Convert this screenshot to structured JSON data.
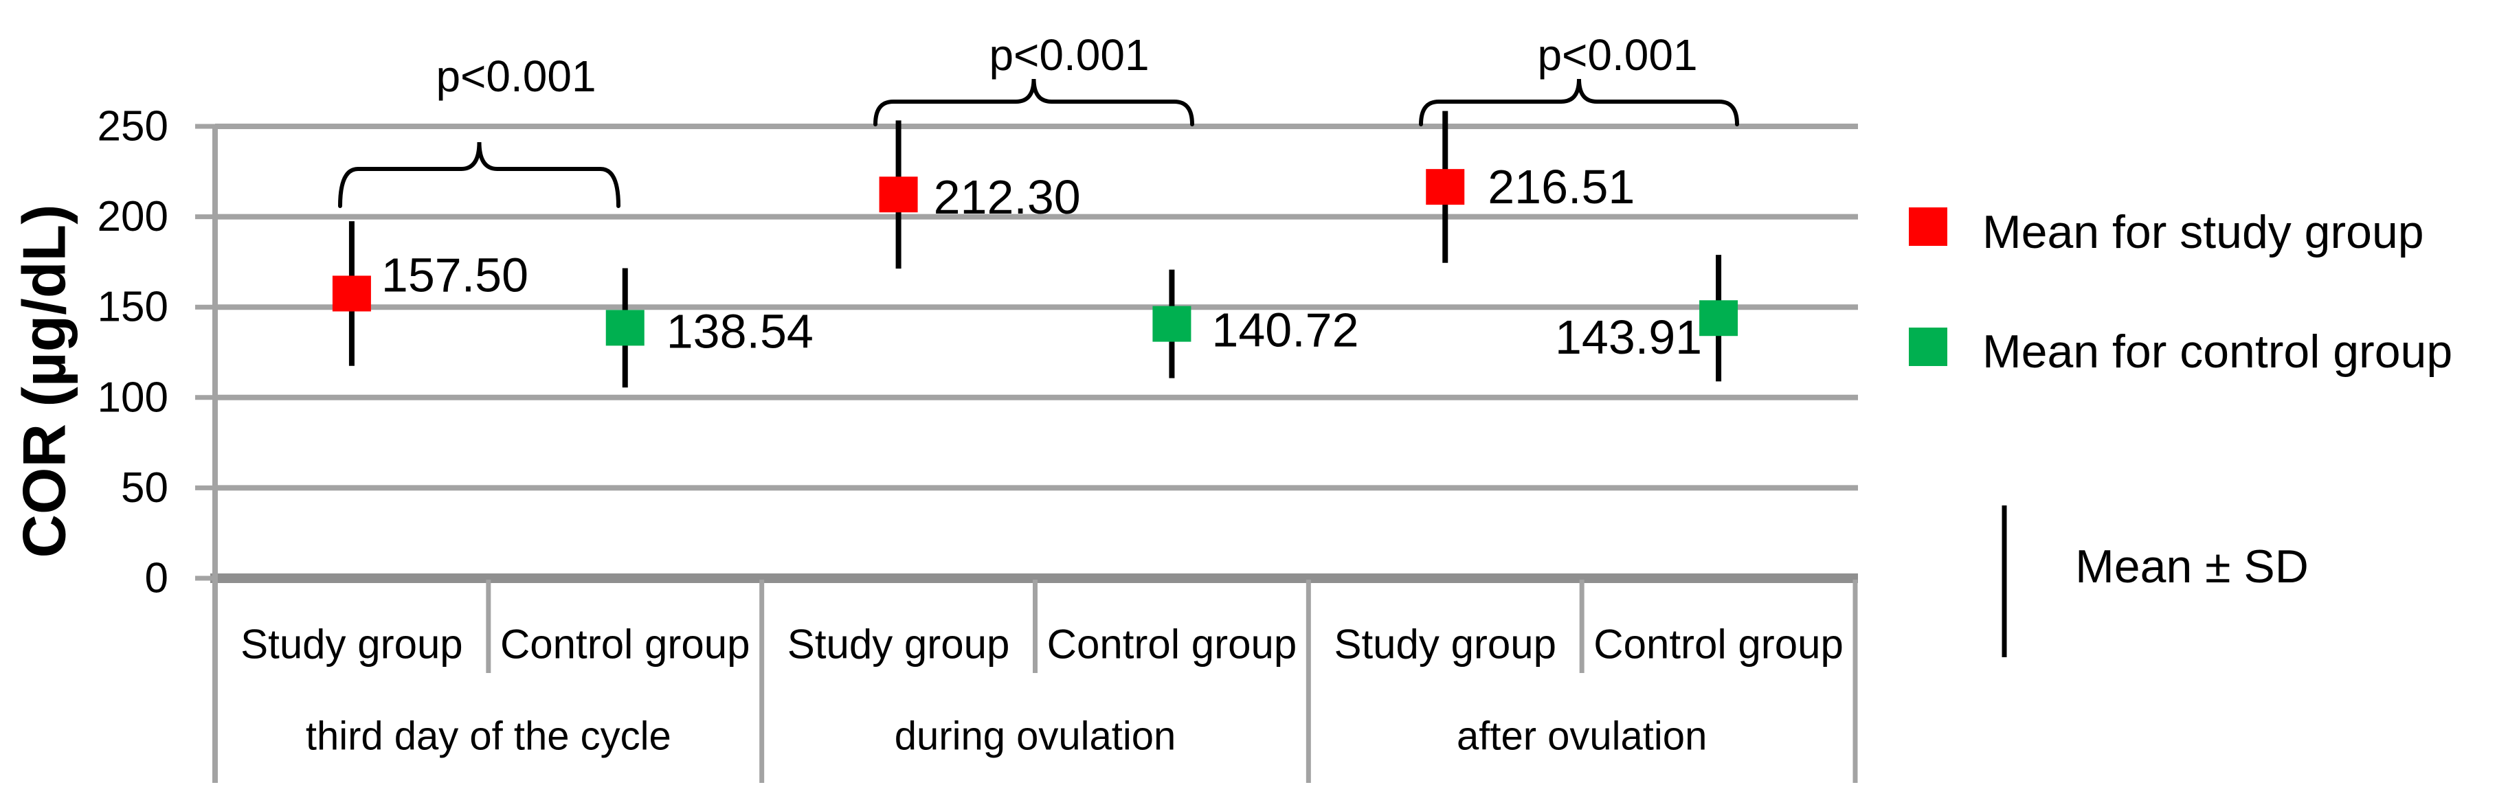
{
  "chart_data": {
    "type": "scatter",
    "title": "",
    "ylabel": "COR (µg/dL)",
    "xlabel": "",
    "ylim": [
      0,
      250
    ],
    "yticks": [
      250,
      200,
      150,
      100,
      50,
      0
    ],
    "grid": true,
    "legend_position": "right",
    "x_groups": [
      {
        "label": "third day of the cycle",
        "p_label": "p<0.001"
      },
      {
        "label": "during ovulation",
        "p_label": "p<0.001"
      },
      {
        "label": "after ovulation",
        "p_label": "p<0.001"
      }
    ],
    "points": [
      {
        "group": 0,
        "category": "Study group",
        "series": "study",
        "mean": 157.5,
        "sd": 40,
        "value_label": "157.50"
      },
      {
        "group": 0,
        "category": "Control group",
        "series": "control",
        "mean": 138.54,
        "sd": 33,
        "value_label": "138.54"
      },
      {
        "group": 1,
        "category": "Study group",
        "series": "study",
        "mean": 212.3,
        "sd": 41,
        "value_label": "212.30"
      },
      {
        "group": 1,
        "category": "Control group",
        "series": "control",
        "mean": 140.72,
        "sd": 30,
        "value_label": "140.72"
      },
      {
        "group": 2,
        "category": "Study group",
        "series": "study",
        "mean": 216.51,
        "sd": 42,
        "value_label": "216.51"
      },
      {
        "group": 2,
        "category": "Control group",
        "series": "control",
        "mean": 143.91,
        "sd": 35,
        "value_label": "143.91"
      }
    ],
    "legend": [
      {
        "series": "study",
        "label": "Mean for study group",
        "color": "#FF0000"
      },
      {
        "series": "control",
        "label": "Mean for control group",
        "color": "#00B050"
      }
    ],
    "annotation": "Mean ± SD",
    "colors": {
      "study_marker": "#FF0000",
      "control_marker": "#00B050",
      "gridline": "#A3A3A3",
      "axis_line": "#8F8F8F",
      "error_bar": "#000000",
      "text": "#000000"
    }
  }
}
